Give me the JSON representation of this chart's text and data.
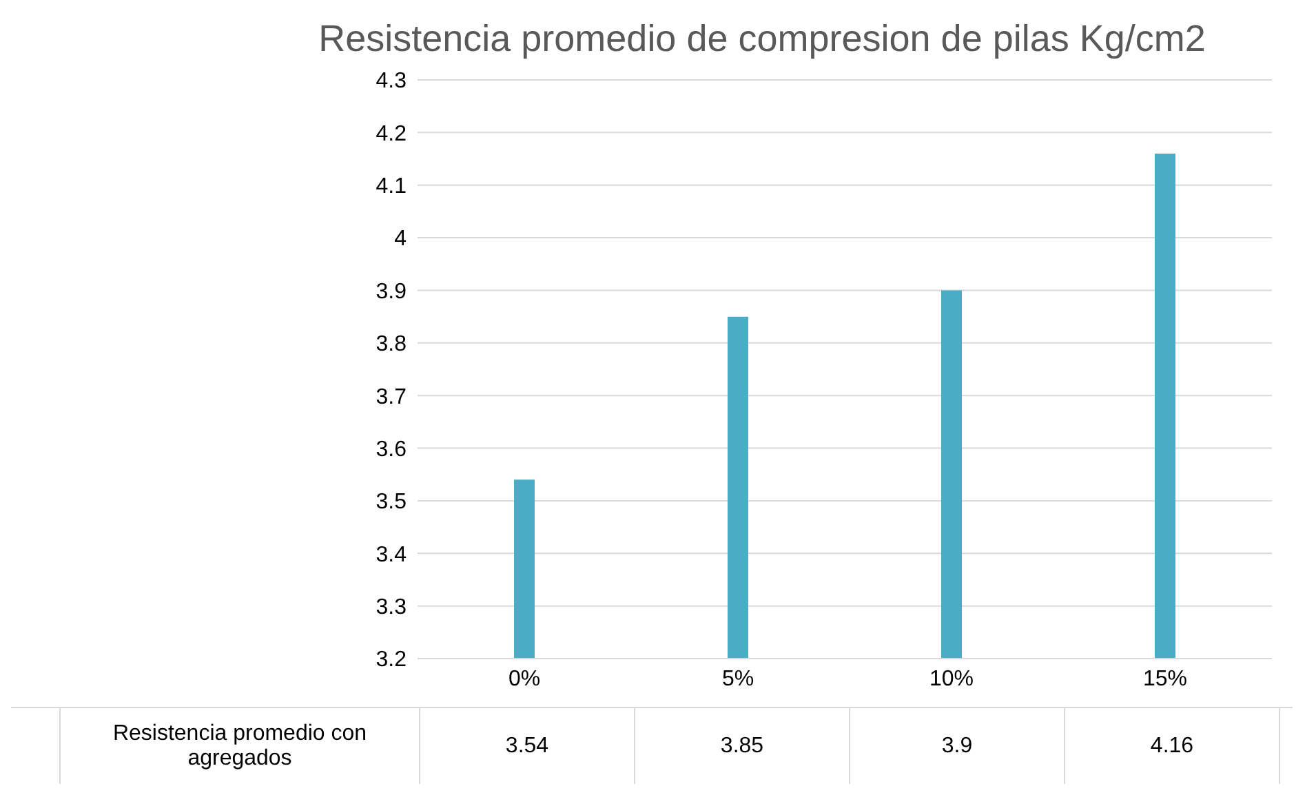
{
  "chart_data": {
    "type": "bar",
    "title": "Resistencia promedio de compresion de pilas  Kg/cm2",
    "categories": [
      "0%",
      "5%",
      "10%",
      "15%"
    ],
    "series": [
      {
        "name": "Resistencia promedio con agregados",
        "color": "#4bacc6",
        "values": [
          3.54,
          3.85,
          3.9,
          4.16
        ]
      }
    ],
    "ylim": [
      3.2,
      4.3
    ],
    "yticks": [
      3.2,
      3.3,
      3.4,
      3.5,
      3.6,
      3.7,
      3.8,
      3.9,
      4,
      4.1,
      4.2,
      4.3
    ],
    "grid": "y",
    "legend": false,
    "data_labels": true
  }
}
